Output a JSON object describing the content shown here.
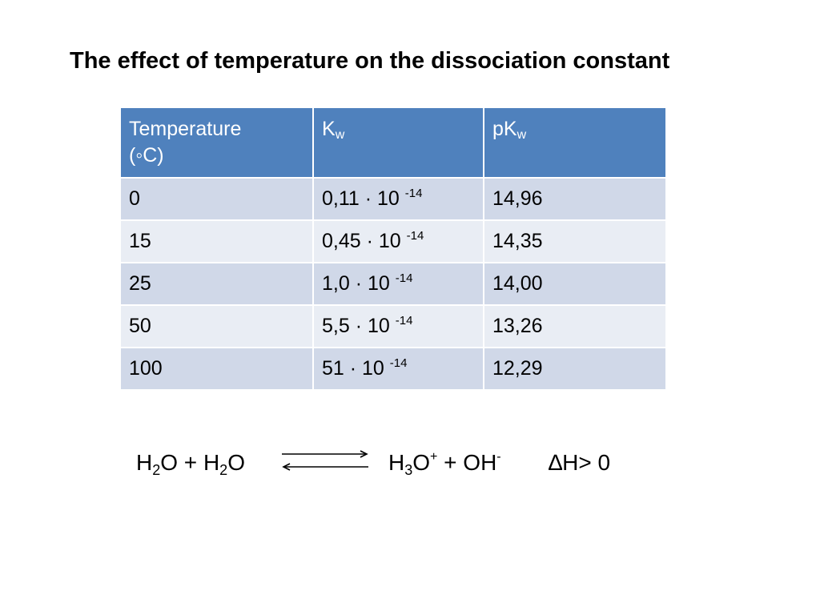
{
  "title": "The effect of temperature on the dissociation constant",
  "table": {
    "header": {
      "col1_line1": "Temperature",
      "col1_line2": "(◦C)",
      "col2_main": "K",
      "col2_sub": "w",
      "col3_main": "pK",
      "col3_sub": "w"
    },
    "rows": [
      {
        "temperature": "0",
        "kw_base": "0,11 · 10",
        "kw_exp": "-14",
        "pkw": "14,96"
      },
      {
        "temperature": "15",
        "kw_base": "0,45 · 10",
        "kw_exp": "-14",
        "pkw": "14,35"
      },
      {
        "temperature": "25",
        "kw_base": "1,0 · 10",
        "kw_exp": "-14",
        "pkw": "14,00"
      },
      {
        "temperature": "50",
        "kw_base": "5,5 · 10",
        "kw_exp": "-14",
        "pkw": "13,26"
      },
      {
        "temperature": "100",
        "kw_base": "51 · 10",
        "kw_exp": "-14",
        "pkw": "12,29"
      }
    ]
  },
  "equation": {
    "r1_a": "H",
    "r1_sub": "2",
    "r1_b": "O + H",
    "r2_sub": "2",
    "r2_b": "O",
    "p1_a": "H",
    "p1_sub": "3",
    "p1_b": "O",
    "p1_sup": "+",
    "p2_a": " + OH",
    "p2_sup": "-",
    "enthalpy": "∆H> 0"
  },
  "colors": {
    "header_bg": "#4f81bd",
    "row_dark": "#d0d8e8",
    "row_light": "#e9edf4"
  }
}
